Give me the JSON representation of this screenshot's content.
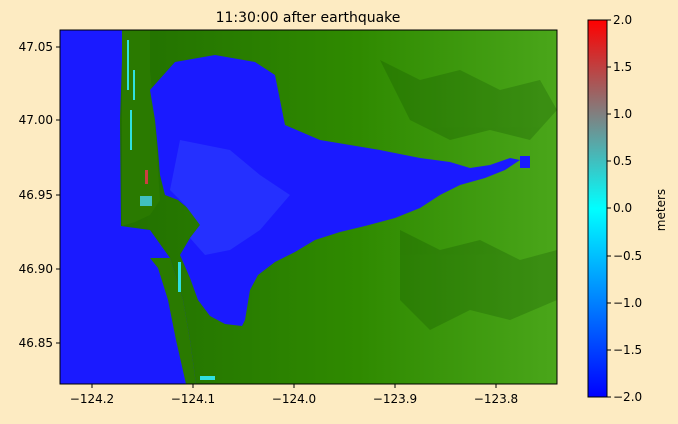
{
  "title": "11:30:00 after earthquake",
  "colors": {
    "background": "#fdebc2",
    "ocean": "#1a1aff",
    "land_dark": "#1f6a00",
    "land_mid": "#2f8a00",
    "land_light": "#4aa61a"
  },
  "map": {
    "x_ticks": [
      "−124.2",
      "−124.1",
      "−124.0",
      "−123.9",
      "−123.8"
    ],
    "y_ticks": [
      "47.05",
      "47.00",
      "46.95",
      "46.90",
      "46.85"
    ]
  },
  "colorbar": {
    "label": "meters",
    "ticks": [
      "2.0",
      "1.5",
      "1.0",
      "0.5",
      "0.0",
      "−0.5",
      "−1.0",
      "−1.5",
      "−2.0"
    ],
    "range": [
      -2.0,
      2.0
    ],
    "colormap": [
      "#0000ff",
      "#0080ff",
      "#00ffff",
      "#808080",
      "#ff0000"
    ]
  }
}
